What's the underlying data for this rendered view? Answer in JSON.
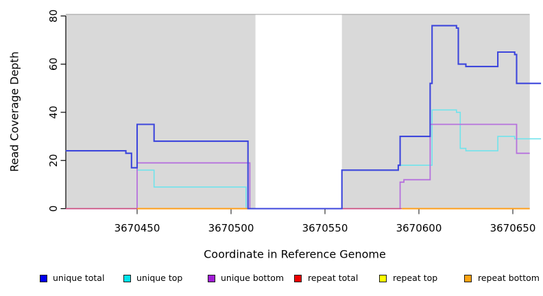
{
  "chart_data": {
    "type": "line",
    "subtype": "step",
    "title": "",
    "xlabel": "Coordinate in Reference Genome",
    "ylabel": "Read Coverage Depth",
    "xlim": [
      3670412,
      3670665
    ],
    "ylim": [
      0,
      80
    ],
    "x_ticks": [
      3670450,
      3670500,
      3670550,
      3670600,
      3670650
    ],
    "y_ticks": [
      0,
      20,
      40,
      60,
      80
    ],
    "grid": false,
    "plot_background": "#FFFFFF",
    "shaded_regions": [
      {
        "x_start": 3670412,
        "x_end": 3670513,
        "color": "#D9D9D9"
      },
      {
        "x_start": 3670559,
        "x_end": 3670659,
        "color": "#D9D9D9"
      }
    ],
    "series": [
      {
        "name": "unique total",
        "legend_color": "#0000EE",
        "line_color": "#3D46DC",
        "line_width": 2.1,
        "segments": [
          [
            [
              3670412,
              24
            ],
            [
              3670444,
              24
            ],
            [
              3670444,
              23
            ],
            [
              3670447,
              23
            ],
            [
              3670447,
              17
            ],
            [
              3670450,
              17
            ],
            [
              3670450,
              35
            ],
            [
              3670459,
              35
            ],
            [
              3670459,
              28
            ],
            [
              3670509,
              28
            ],
            [
              3670509,
              0
            ],
            [
              3670559,
              0
            ],
            [
              3670559,
              16
            ],
            [
              3670589,
              16
            ],
            [
              3670589,
              18
            ],
            [
              3670590,
              18
            ],
            [
              3670590,
              30
            ],
            [
              3670606,
              30
            ],
            [
              3670606,
              52
            ],
            [
              3670607,
              52
            ],
            [
              3670607,
              76
            ],
            [
              3670620,
              76
            ],
            [
              3670620,
              75
            ],
            [
              3670621,
              75
            ],
            [
              3670621,
              60
            ],
            [
              3670625,
              60
            ],
            [
              3670625,
              59
            ],
            [
              3670642,
              59
            ],
            [
              3670642,
              65
            ],
            [
              3670651,
              65
            ],
            [
              3670651,
              64
            ],
            [
              3670652,
              64
            ],
            [
              3670652,
              52
            ],
            [
              3670665,
              52
            ]
          ]
        ]
      },
      {
        "name": "unique top",
        "legend_color": "#00E5EE",
        "line_color": "#70E3EC",
        "line_width": 1.6,
        "segments": [
          [
            [
              3670412,
              24
            ],
            [
              3670444,
              24
            ],
            [
              3670444,
              23
            ],
            [
              3670447,
              23
            ],
            [
              3670447,
              17
            ],
            [
              3670450,
              17
            ],
            [
              3670450,
              16
            ],
            [
              3670459,
              16
            ],
            [
              3670459,
              9
            ],
            [
              3670508,
              9
            ],
            [
              3670508,
              0
            ],
            [
              3670559,
              0
            ],
            [
              3670559,
              16
            ],
            [
              3670589,
              16
            ],
            [
              3670589,
              18
            ],
            [
              3670607,
              18
            ],
            [
              3670607,
              41
            ],
            [
              3670620,
              41
            ],
            [
              3670620,
              40
            ],
            [
              3670622,
              40
            ],
            [
              3670622,
              25
            ],
            [
              3670625,
              25
            ],
            [
              3670625,
              24
            ],
            [
              3670642,
              24
            ],
            [
              3670642,
              30
            ],
            [
              3670651,
              30
            ],
            [
              3670651,
              29
            ],
            [
              3670665,
              29
            ]
          ]
        ]
      },
      {
        "name": "unique bottom",
        "legend_color": "#A21DD6",
        "line_color": "#B671DD",
        "line_width": 1.8,
        "segments": [
          [
            [
              3670412,
              0
            ],
            [
              3670450,
              0
            ],
            [
              3670450,
              19
            ],
            [
              3670510,
              19
            ],
            [
              3670510,
              0
            ],
            [
              3670590,
              0
            ],
            [
              3670590,
              11
            ],
            [
              3670592,
              11
            ],
            [
              3670592,
              12
            ],
            [
              3670606,
              12
            ],
            [
              3670606,
              35
            ],
            [
              3670652,
              35
            ],
            [
              3670652,
              23
            ],
            [
              3670659,
              23
            ]
          ]
        ]
      },
      {
        "name": "repeat total",
        "legend_color": "#EE0000",
        "line_color": "#D15077",
        "line_width": 1.6,
        "segments": [
          [
            [
              3670412,
              0
            ],
            [
              3670450,
              0
            ]
          ],
          [
            [
              3670559,
              0
            ],
            [
              3670591,
              0
            ]
          ]
        ]
      },
      {
        "name": "repeat top",
        "legend_color": "#FFFF00",
        "line_color": "#F5E642",
        "line_width": 1.6,
        "segments": []
      },
      {
        "name": "repeat bottom",
        "legend_color": "#FFA412",
        "line_color": "#FF9E19",
        "line_width": 2,
        "segments": [
          [
            [
              3670450,
              0
            ],
            [
              3670509,
              0
            ]
          ],
          [
            [
              3670591,
              0
            ],
            [
              3670659,
              0
            ]
          ]
        ]
      }
    ],
    "legend": {
      "position": "bottom",
      "entries": [
        "unique total",
        "unique top",
        "unique bottom",
        "repeat total",
        "repeat top",
        "repeat bottom"
      ]
    }
  }
}
